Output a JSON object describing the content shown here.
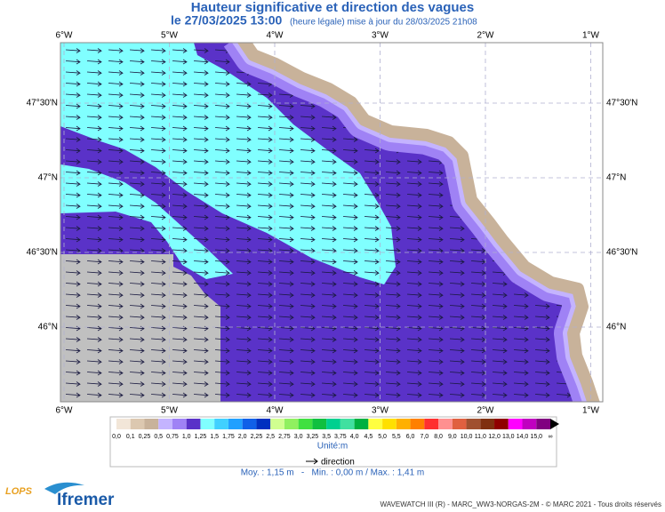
{
  "header": {
    "title": "Hauteur significative et direction des vagues",
    "date": "le 27/03/2025 13:00",
    "update": "(heure légale) mise à jour du 28/03/2025 21h08"
  },
  "map": {
    "lon_ticks": [
      {
        "value": -6,
        "label": "6°W"
      },
      {
        "value": -5,
        "label": "5°W"
      },
      {
        "value": -4,
        "label": "4°W"
      },
      {
        "value": -3,
        "label": "3°W"
      },
      {
        "value": -2,
        "label": "2°W"
      },
      {
        "value": -1,
        "label": "1°W"
      }
    ],
    "lat_ticks": [
      {
        "value": 47.5,
        "label": "47°30'N"
      },
      {
        "value": 47,
        "label": "47°N"
      },
      {
        "value": 46.5,
        "label": "46°30'N"
      },
      {
        "value": 46,
        "label": "46°N"
      }
    ]
  },
  "legend": {
    "labels": [
      "0,0",
      "0,1",
      "0,25",
      "0,5",
      "0,75",
      "1,0",
      "1,25",
      "1,5",
      "1,75",
      "2,0",
      "2,25",
      "2,5",
      "2,75",
      "3,0",
      "3,25",
      "3,5",
      "3,75",
      "4,0",
      "4,5",
      "5,0",
      "5,5",
      "6,0",
      "7,0",
      "8,0",
      "9,0",
      "10,0",
      "11,0",
      "12,0",
      "13,0",
      "14,0",
      "15,0",
      "∞"
    ],
    "colors": [
      "#f2e6d8",
      "#dcc8b0",
      "#c8b29a",
      "#c4b4ff",
      "#9f82f5",
      "#5a32c8",
      "#80ffff",
      "#40d0ff",
      "#20a0ff",
      "#1060e8",
      "#0030c0",
      "#d0ff90",
      "#90f060",
      "#40e040",
      "#10c040",
      "#00d090",
      "#40e0a0",
      "#00b040",
      "#ffff40",
      "#ffe000",
      "#ffb000",
      "#ff8000",
      "#ff3030",
      "#ff9090",
      "#e06040",
      "#a05030",
      "#803010",
      "#900000",
      "#ff00ff",
      "#c000c0",
      "#800080"
    ],
    "unit": "Unité:m",
    "direction": "direction",
    "stats": "Moy. : 1,15 m   -   Min. : 0,00 m / Max. : 1,41 m"
  },
  "footer": {
    "logo_lops": "LOPS",
    "logo_ifremer": "Ifremer",
    "credit": "WAVEWATCH III (R) - MARC_WW3-NORGAS-2M - © MARC 2021 - Tous droits réservés"
  }
}
